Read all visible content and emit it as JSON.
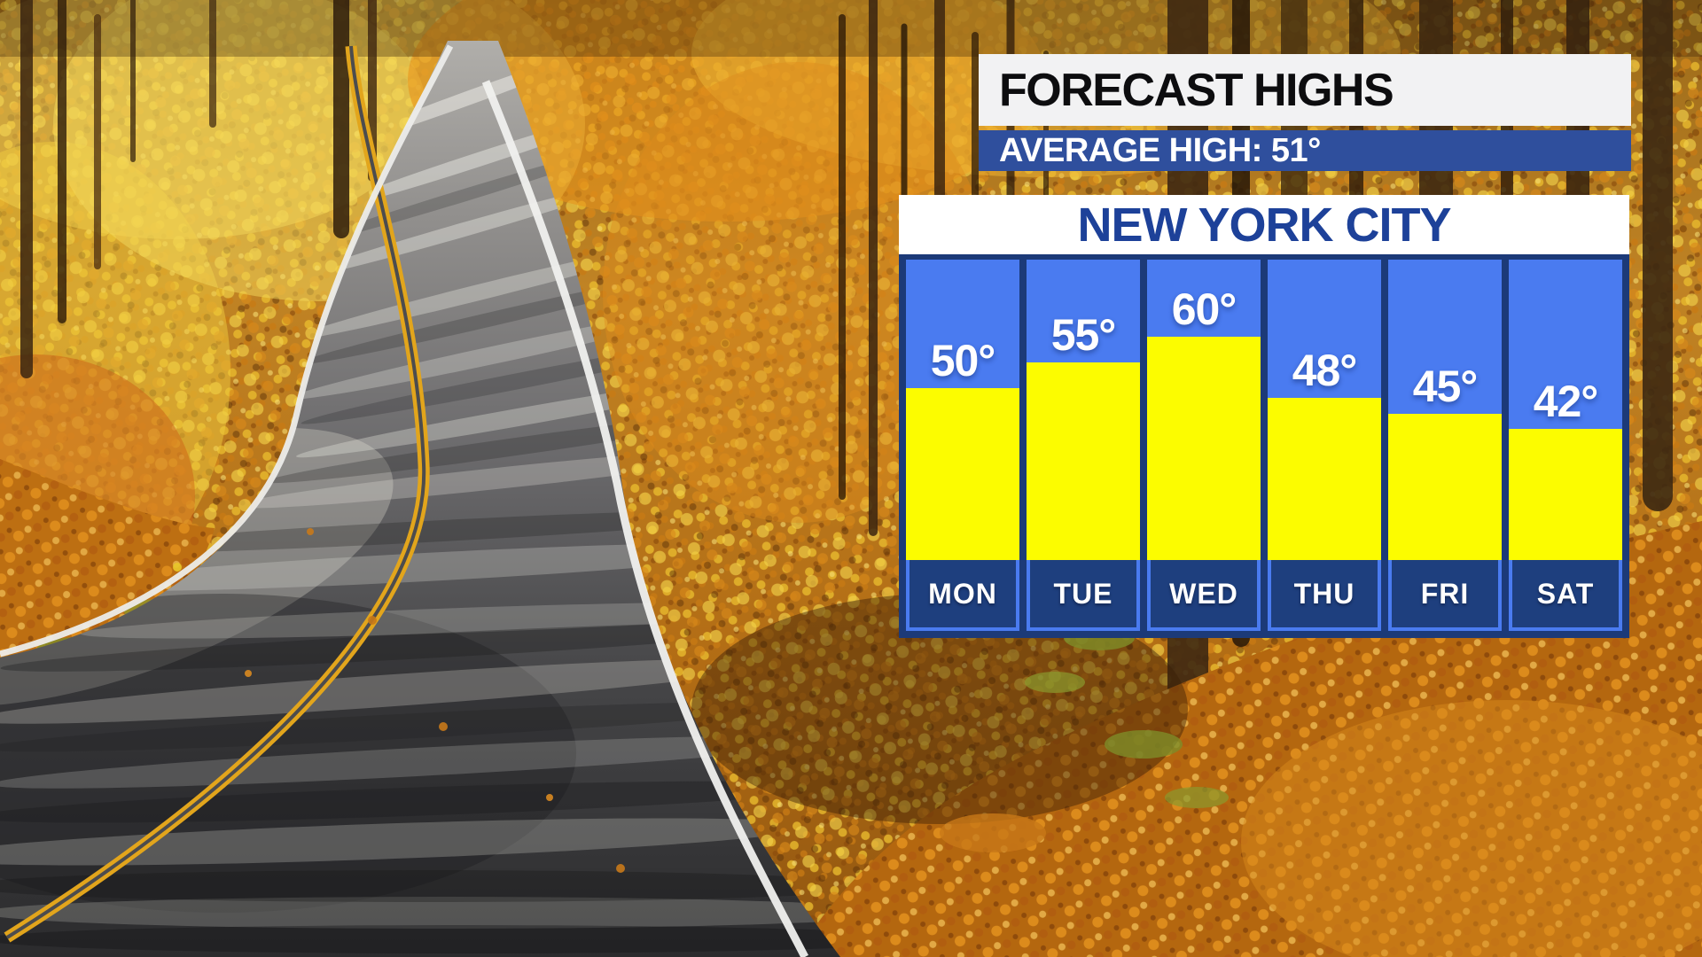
{
  "forecast_panel": {
    "header": "FORECAST HIGHS",
    "average_high": "AVERAGE HIGH: 51°",
    "city": "NEW YORK CITY"
  },
  "chart_data": {
    "type": "bar",
    "title": "NEW YORK CITY",
    "subtitle": "FORECAST HIGHS",
    "categories": [
      "MON",
      "TUE",
      "WED",
      "THU",
      "FRI",
      "SAT"
    ],
    "values": [
      50,
      55,
      60,
      48,
      45,
      42
    ],
    "value_labels": [
      "50°",
      "55°",
      "60°",
      "48°",
      "45°",
      "42°"
    ],
    "unit": "°F",
    "annotations": [
      "AVERAGE HIGH: 51°"
    ],
    "legend_position": "none",
    "grid": false,
    "colors": {
      "bar_fill": "#fcfc00",
      "column_bg": "#4a7bf0",
      "panel_bg": "#1c3a78",
      "day_box_bg": "#1e3f7e",
      "header_bar_bg": "#2f4f9d",
      "text_navy": "#1d4199"
    }
  }
}
